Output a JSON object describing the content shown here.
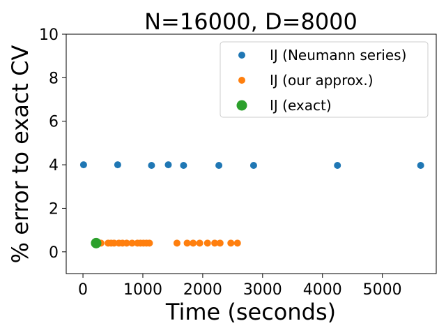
{
  "chart_data": {
    "type": "scatter",
    "title": "N=16000, D=8000",
    "xlabel": "Time (seconds)",
    "ylabel": "% error to exact CV",
    "xlim": [
      -280,
      5900
    ],
    "ylim": [
      -1,
      10
    ],
    "xticks": [
      0,
      1000,
      2000,
      3000,
      4000,
      5000
    ],
    "yticks": [
      0,
      2,
      4,
      6,
      8,
      10
    ],
    "grid": false,
    "legend_position": "upper right",
    "series": [
      {
        "name": "IJ (Neumann series)",
        "color": "#1f77b4",
        "marker_size": "normal",
        "points": [
          {
            "x": 10,
            "y": 4.0
          },
          {
            "x": 580,
            "y": 4.0
          },
          {
            "x": 1145,
            "y": 3.97
          },
          {
            "x": 1425,
            "y": 4.0
          },
          {
            "x": 1680,
            "y": 3.97
          },
          {
            "x": 2270,
            "y": 3.97
          },
          {
            "x": 2850,
            "y": 3.97
          },
          {
            "x": 4250,
            "y": 3.97
          },
          {
            "x": 5640,
            "y": 3.97
          }
        ]
      },
      {
        "name": "IJ (our approx.)",
        "color": "#ff7f0e",
        "marker_size": "normal",
        "points": [
          {
            "x": 300,
            "y": 0.4
          },
          {
            "x": 420,
            "y": 0.4
          },
          {
            "x": 470,
            "y": 0.4
          },
          {
            "x": 520,
            "y": 0.4
          },
          {
            "x": 600,
            "y": 0.4
          },
          {
            "x": 660,
            "y": 0.4
          },
          {
            "x": 730,
            "y": 0.4
          },
          {
            "x": 820,
            "y": 0.4
          },
          {
            "x": 910,
            "y": 0.4
          },
          {
            "x": 960,
            "y": 0.4
          },
          {
            "x": 1010,
            "y": 0.4
          },
          {
            "x": 1060,
            "y": 0.4
          },
          {
            "x": 1110,
            "y": 0.4
          },
          {
            "x": 1570,
            "y": 0.4
          },
          {
            "x": 1740,
            "y": 0.4
          },
          {
            "x": 1840,
            "y": 0.4
          },
          {
            "x": 1950,
            "y": 0.4
          },
          {
            "x": 2080,
            "y": 0.4
          },
          {
            "x": 2200,
            "y": 0.4
          },
          {
            "x": 2290,
            "y": 0.4
          },
          {
            "x": 2470,
            "y": 0.4
          },
          {
            "x": 2580,
            "y": 0.4
          }
        ]
      },
      {
        "name": "IJ (exact)",
        "color": "#2ca02c",
        "marker_size": "large",
        "points": [
          {
            "x": 220,
            "y": 0.4
          }
        ]
      }
    ]
  }
}
